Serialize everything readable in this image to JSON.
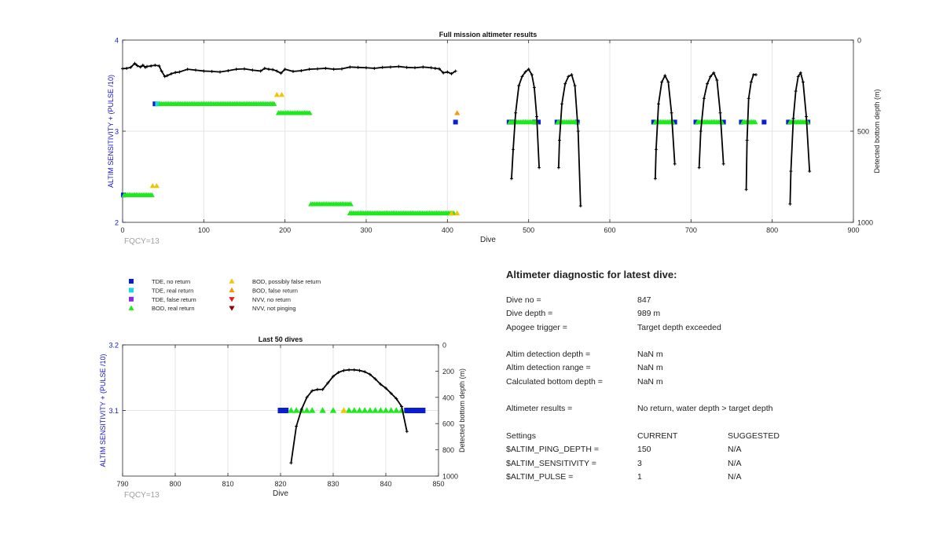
{
  "chart_data": [
    {
      "id": "full-mission",
      "type": "scatter",
      "title": "Full mission altimeter results",
      "xlabel": "Dive",
      "ylabel": "ALTIM SENSITIVITY + (PULSE /10)",
      "y2label": "Detected bottom depth (m)",
      "xlim": [
        0,
        900
      ],
      "ylim": [
        2,
        4
      ],
      "y2lim": [
        0,
        1000
      ],
      "y2_reversed": true,
      "xticks": [
        0,
        100,
        200,
        300,
        400,
        500,
        600,
        700,
        800,
        900
      ],
      "yticks": [
        2,
        3,
        4
      ],
      "y2ticks": [
        0,
        500,
        1000
      ],
      "grid": true,
      "annotation": "FQCY=13",
      "series": [
        {
          "name": "TDE, no return",
          "marker": "square",
          "color": "#0a1ed0",
          "points": [
            [
              1,
              2.3
            ],
            [
              40,
              3.3
            ],
            [
              410,
              3.1
            ],
            [
              476,
              3.1
            ],
            [
              480,
              3.1
            ],
            [
              508,
              3.1
            ],
            [
              512,
              3.1
            ],
            [
              535,
              3.1
            ],
            [
              560,
              3.1
            ],
            [
              654,
              3.1
            ],
            [
              680,
              3.1
            ],
            [
              706,
              3.1
            ],
            [
              740,
              3.1
            ],
            [
              762,
              3.1
            ],
            [
              790,
              3.1
            ],
            [
              820,
              3.1
            ],
            [
              844,
              3.1
            ]
          ]
        },
        {
          "name": "TDE, real return",
          "marker": "square",
          "color": "#1ed8e8",
          "points": [
            [
              43,
              3.3
            ]
          ]
        },
        {
          "name": "BOD, real return",
          "marker": "triangle-up",
          "color": "#1ee81e",
          "bands": [
            {
              "x0": 2,
              "x1": 38,
              "y": 2.3
            },
            {
              "x0": 46,
              "x1": 188,
              "y": 3.3
            },
            {
              "x0": 192,
              "x1": 232,
              "y": 3.2
            },
            {
              "x0": 232,
              "x1": 282,
              "y": 2.2
            },
            {
              "x0": 280,
              "x1": 408,
              "y": 2.1
            },
            {
              "x0": 477,
              "x1": 510,
              "y": 3.1
            },
            {
              "x0": 536,
              "x1": 560,
              "y": 3.1
            },
            {
              "x0": 656,
              "x1": 678,
              "y": 3.1
            },
            {
              "x0": 708,
              "x1": 738,
              "y": 3.1
            },
            {
              "x0": 764,
              "x1": 780,
              "y": 3.1
            },
            {
              "x0": 822,
              "x1": 844,
              "y": 3.1
            }
          ]
        },
        {
          "name": "BOD, possibly false return",
          "marker": "triangle-up",
          "color": "#f5c400",
          "points": [
            [
              37,
              2.4
            ],
            [
              42,
              2.4
            ],
            [
              190,
              3.4
            ],
            [
              196,
              3.4
            ],
            [
              405,
              2.1
            ],
            [
              412,
              2.1
            ]
          ]
        },
        {
          "name": "BOD, false return",
          "marker": "triangle-up",
          "color": "#f09a10",
          "points": [
            [
              412,
              3.2
            ]
          ]
        }
      ],
      "bottom_depth_segments": [
        {
          "x": [
            0,
            5,
            10,
            15,
            18,
            22,
            25,
            28,
            30,
            35,
            40,
            45,
            48,
            52,
            55,
            60,
            65,
            70,
            80,
            90,
            100,
            110,
            120,
            130,
            140,
            150,
            160,
            170,
            175,
            180,
            185,
            190,
            195,
            200,
            210,
            220,
            230,
            240,
            250,
            260,
            270,
            280,
            290,
            300,
            310,
            320,
            330,
            340,
            350,
            360,
            370,
            380,
            385,
            390,
            395,
            400,
            405,
            410
          ],
          "y": [
            157,
            155,
            150,
            128,
            140,
            148,
            138,
            150,
            145,
            142,
            138,
            142,
            170,
            200,
            195,
            185,
            178,
            175,
            160,
            165,
            170,
            172,
            175,
            168,
            160,
            158,
            165,
            170,
            155,
            160,
            162,
            170,
            182,
            160,
            172,
            168,
            160,
            158,
            155,
            160,
            158,
            148,
            150,
            152,
            155,
            150,
            148,
            145,
            150,
            152,
            148,
            152,
            155,
            158,
            180,
            175,
            185,
            170
          ]
        },
        {
          "x": [
            479,
            481,
            484,
            488,
            492,
            496,
            500,
            504,
            507,
            510,
            513
          ],
          "y": [
            760,
            600,
            400,
            250,
            200,
            175,
            160,
            190,
            260,
            420,
            700
          ]
        },
        {
          "x": [
            537,
            538,
            541,
            545,
            549,
            553,
            557,
            561,
            564
          ],
          "y": [
            700,
            550,
            350,
            240,
            200,
            190,
            250,
            500,
            910
          ]
        },
        {
          "x": [
            656,
            657,
            660,
            664,
            668,
            672,
            676,
            680
          ],
          "y": [
            760,
            600,
            350,
            230,
            195,
            230,
            400,
            680
          ]
        },
        {
          "x": [
            710,
            712,
            716,
            720,
            724,
            728,
            732,
            736,
            740
          ],
          "y": [
            700,
            500,
            320,
            240,
            200,
            180,
            220,
            400,
            680
          ]
        },
        {
          "x": [
            768,
            769,
            771,
            774,
            777,
            780
          ],
          "y": [
            820,
            550,
            320,
            230,
            190,
            190
          ]
        },
        {
          "x": [
            822,
            823,
            826,
            829,
            832,
            835,
            838,
            842,
            846
          ],
          "y": [
            900,
            720,
            430,
            280,
            200,
            180,
            230,
            420,
            720
          ]
        }
      ]
    },
    {
      "id": "last-50",
      "type": "scatter",
      "title": "Last 50 dives",
      "xlabel": "Dive",
      "ylabel": "ALTIM SENSITIVITY + (PULSE /10)",
      "y2label": "Detected bottom depth (m)",
      "xlim": [
        790,
        850
      ],
      "ylim": [
        3.0,
        3.2
      ],
      "y2lim": [
        0,
        1000
      ],
      "y2_reversed": true,
      "xticks": [
        790,
        800,
        810,
        820,
        830,
        840,
        850
      ],
      "yticks": [
        3.1,
        3.2
      ],
      "y2ticks": [
        0,
        200,
        400,
        600,
        800,
        1000
      ],
      "grid": true,
      "annotation": "FQCY=13",
      "series": [
        {
          "name": "TDE, no return",
          "marker": "square",
          "color": "#0a1ed0",
          "points": [
            [
              820,
              3.1
            ],
            [
              821,
              3.1
            ],
            [
              844,
              3.1
            ],
            [
              845,
              3.1
            ],
            [
              846,
              3.1
            ],
            [
              847,
              3.1
            ]
          ]
        },
        {
          "name": "BOD, real return",
          "marker": "triangle-up",
          "color": "#1ee81e",
          "points": [
            [
              822,
              3.1
            ],
            [
              823,
              3.1
            ],
            [
              824,
              3.1
            ],
            [
              825,
              3.1
            ],
            [
              826,
              3.1
            ],
            [
              828,
              3.1
            ],
            [
              830,
              3.1
            ],
            [
              833,
              3.1
            ],
            [
              834,
              3.1
            ],
            [
              835,
              3.1
            ],
            [
              836,
              3.1
            ],
            [
              837,
              3.1
            ],
            [
              838,
              3.1
            ],
            [
              839,
              3.1
            ],
            [
              840,
              3.1
            ],
            [
              841,
              3.1
            ],
            [
              842,
              3.1
            ],
            [
              843,
              3.1
            ]
          ]
        },
        {
          "name": "BOD, possibly false return",
          "marker": "triangle-up",
          "color": "#f5c400",
          "points": [
            [
              832,
              3.1
            ]
          ]
        }
      ],
      "bottom_depth_segments": [
        {
          "x": [
            822,
            823,
            824,
            825,
            826,
            827,
            828,
            829,
            830,
            831,
            832,
            833,
            834,
            835,
            836,
            837,
            838,
            839,
            840,
            841,
            842,
            843,
            844
          ],
          "y": [
            900,
            620,
            490,
            400,
            350,
            340,
            340,
            290,
            240,
            210,
            195,
            190,
            190,
            195,
            205,
            225,
            260,
            300,
            330,
            370,
            410,
            470,
            660
          ]
        }
      ]
    }
  ],
  "legend": {
    "items": [
      {
        "label": "TDE, no return",
        "marker": "square",
        "color": "#0a1ed0"
      },
      {
        "label": "TDE, real return",
        "marker": "square",
        "color": "#1ed8e8"
      },
      {
        "label": "TDE, false return",
        "marker": "square",
        "color": "#8a2be2"
      },
      {
        "label": "BOD, real return",
        "marker": "triangle-up",
        "color": "#1ee81e"
      },
      {
        "label": "BOD, possibly false return",
        "marker": "triangle-up",
        "color": "#f5c400"
      },
      {
        "label": "BOD, false return",
        "marker": "triangle-up",
        "color": "#f09a10"
      },
      {
        "label": "NVV, no return",
        "marker": "triangle-down",
        "color": "#e81e1e"
      },
      {
        "label": "NVV, not pinging",
        "marker": "triangle-down",
        "color": "#8b0000"
      }
    ]
  },
  "diagnostic": {
    "title": "Altimeter diagnostic for latest dive:",
    "dive_no_label": "Dive no =",
    "dive_no_value": "847",
    "dive_depth_label": "Dive depth =",
    "dive_depth_value": "989 m",
    "apogee_label": "Apogee trigger =",
    "apogee_value": "Target depth exceeded",
    "detect_depth_label": "Altim detection depth =",
    "detect_depth_value": "NaN m",
    "detect_range_label": "Altim detection range =",
    "detect_range_value": "NaN m",
    "calc_bottom_label": "Calculated bottom depth =",
    "calc_bottom_value": "NaN m",
    "results_label": "Altimeter results =",
    "results_value": "No return, water depth > target depth",
    "settings_header": "Settings",
    "current_header": "CURRENT",
    "suggested_header": "SUGGESTED",
    "settings": [
      {
        "name": "$ALTIM_PING_DEPTH =",
        "current": "150",
        "suggested": "N/A"
      },
      {
        "name": "$ALTIM_SENSITIVITY =",
        "current": "3",
        "suggested": "N/A"
      },
      {
        "name": "$ALTIM_PULSE =",
        "current": "1",
        "suggested": "N/A"
      }
    ]
  }
}
